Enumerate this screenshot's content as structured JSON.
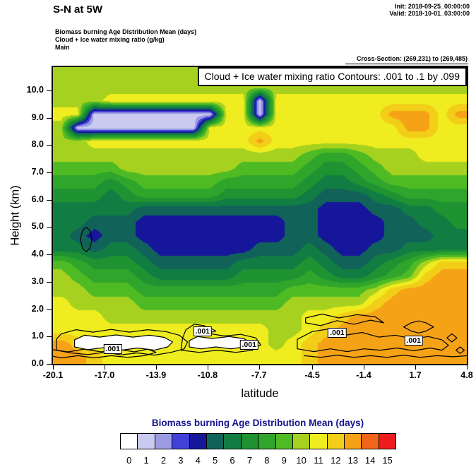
{
  "header": {
    "title": "S-N at 5W",
    "init_label": "Init: 2018-09-25_00:00:00",
    "valid_label": "Valid: 2018-10-01_03:00:00",
    "field_lines": [
      "Biomass burning Age Distribution Mean  (days)",
      "Cloud + Ice water mixing ratio  (g/kg)",
      "Main"
    ],
    "cross_section": "Cross-Section: (269,231) to (269,485)"
  },
  "chart_data": {
    "type": "heatmap",
    "plot_title": "Cloud + Ice water mixing ratio Contours: .001 to .1 by .099",
    "field_name": "Biomass burning Age Distribution Mean",
    "field_units": "days",
    "overlay_field": "Cloud + Ice water mixing ratio",
    "overlay_units": "g/kg",
    "xlabel": "latitude",
    "ylabel": "Height (km)",
    "xlim": [
      -20.1,
      4.8
    ],
    "ylim": [
      0,
      10.85
    ],
    "x_ticks": [
      -20.1,
      -17.0,
      -13.9,
      -10.8,
      -7.7,
      -4.5,
      -1.4,
      1.7,
      4.8
    ],
    "x_tick_labels": [
      "-20.1",
      "-17.0",
      "-13.9",
      "-10.8",
      "-7.7",
      "-4.5",
      "-1.4",
      "1.7",
      "4.8"
    ],
    "y_ticks": [
      0,
      1,
      2,
      3,
      4,
      5,
      6,
      7,
      8,
      9,
      10
    ],
    "y_tick_labels": [
      "0.0",
      "1.0",
      "2.0",
      "3.0",
      "4.0",
      "5.0",
      "6.0",
      "7.0",
      "8.0",
      "9.0",
      "10.0"
    ],
    "levels": [
      0,
      1,
      2,
      3,
      4,
      5,
      6,
      7,
      8,
      9,
      10,
      11,
      12,
      13,
      14,
      15
    ],
    "palette": [
      "#FFFFFF",
      "#CACAF0",
      "#9B9BE1",
      "#4141D7",
      "#16169B",
      "#11635A",
      "#127D43",
      "#1F9332",
      "#2FA52B",
      "#4FBB24",
      "#A6D21F",
      "#EFEC1F",
      "#F2CE18",
      "#F5A216",
      "#F2641A",
      "#EE1C1C"
    ],
    "values_grid": [
      [
        10,
        10,
        10,
        10,
        10,
        10,
        10,
        10,
        10,
        10,
        10,
        10,
        10,
        10,
        10,
        10,
        10,
        10,
        10,
        10,
        10,
        10,
        10,
        10,
        10
      ],
      [
        10,
        10,
        10,
        10,
        10,
        10,
        10,
        10,
        10,
        10,
        10,
        10,
        10,
        10,
        10,
        10,
        10,
        10,
        10,
        10,
        10,
        10,
        10,
        10,
        10
      ],
      [
        10,
        10,
        10,
        11,
        11,
        11,
        11,
        11,
        11,
        11,
        11,
        11,
        1,
        11,
        11,
        11,
        11,
        11,
        11,
        11,
        11,
        11,
        11,
        11,
        11
      ],
      [
        11,
        11,
        1,
        1,
        1,
        1,
        1,
        1,
        1,
        1,
        11,
        11,
        1,
        11,
        11,
        11,
        11,
        11,
        11,
        11,
        13,
        13,
        13,
        11,
        13
      ],
      [
        10,
        1,
        1,
        1,
        1,
        1,
        1,
        1,
        1,
        11,
        11,
        11,
        11,
        11,
        11,
        11,
        11,
        11,
        11,
        11,
        11,
        13,
        13,
        11,
        11
      ],
      [
        10,
        10,
        11,
        11,
        11,
        11,
        11,
        11,
        11,
        11,
        11,
        11,
        13,
        11,
        11,
        11,
        11,
        11,
        11,
        11,
        11,
        11,
        11,
        11,
        11
      ],
      [
        10,
        10,
        10,
        10,
        10,
        10,
        10,
        10,
        10,
        10,
        10,
        10,
        10,
        10,
        10,
        9,
        8,
        8,
        9,
        10,
        10,
        10,
        11,
        11,
        11
      ],
      [
        9,
        9,
        9,
        9,
        10,
        10,
        10,
        10,
        10,
        10,
        10,
        9,
        9,
        9,
        9,
        8,
        7,
        7,
        8,
        9,
        10,
        10,
        10,
        10,
        10
      ],
      [
        8,
        8,
        8,
        7,
        8,
        9,
        9,
        9,
        9,
        9,
        8,
        8,
        8,
        8,
        8,
        7,
        6,
        6,
        7,
        8,
        9,
        9,
        9,
        9,
        9
      ],
      [
        7,
        7,
        7,
        6,
        7,
        8,
        8,
        8,
        8,
        8,
        7,
        7,
        7,
        7,
        7,
        6,
        5,
        5,
        5,
        6,
        7,
        8,
        8,
        8,
        8
      ],
      [
        6,
        6,
        6,
        6,
        6,
        5,
        5,
        5,
        5,
        5,
        5,
        5,
        5,
        5,
        5,
        5,
        4,
        4,
        4,
        5,
        5,
        6,
        6,
        7,
        7
      ],
      [
        6,
        6,
        5,
        5,
        5,
        4,
        4,
        4,
        4,
        4,
        4,
        4,
        4,
        4,
        5,
        5,
        4,
        4,
        4,
        4,
        5,
        5,
        6,
        6,
        7
      ],
      [
        6,
        5,
        4,
        5,
        5,
        4,
        4,
        4,
        4,
        4,
        4,
        4,
        4,
        4,
        5,
        5,
        4,
        4,
        4,
        4,
        5,
        5,
        5,
        6,
        6
      ],
      [
        6,
        6,
        5,
        6,
        6,
        5,
        4,
        4,
        4,
        4,
        4,
        4,
        5,
        5,
        5,
        6,
        5,
        4,
        4,
        5,
        5,
        6,
        6,
        6,
        6
      ],
      [
        9,
        8,
        7,
        7,
        7,
        6,
        5,
        5,
        5,
        5,
        5,
        6,
        6,
        6,
        6,
        7,
        6,
        5,
        5,
        6,
        7,
        8,
        10,
        12,
        12
      ],
      [
        10,
        9,
        8,
        8,
        8,
        7,
        6,
        6,
        6,
        6,
        6,
        7,
        7,
        7,
        7,
        8,
        7,
        6,
        6,
        7,
        8,
        9,
        12,
        13,
        13
      ],
      [
        10,
        10,
        9,
        9,
        9,
        8,
        8,
        8,
        8,
        8,
        8,
        8,
        8,
        8,
        9,
        9,
        9,
        9,
        9,
        10,
        12,
        13,
        13,
        13,
        13
      ],
      [
        11,
        10,
        10,
        10,
        10,
        9,
        9,
        9,
        9,
        9,
        9,
        9,
        9,
        9,
        10,
        10,
        10,
        10,
        10,
        12,
        13,
        13,
        13,
        13,
        13
      ],
      [
        11,
        11,
        11,
        10,
        10,
        10,
        10,
        10,
        10,
        10,
        10,
        10,
        10,
        10,
        10,
        11,
        11,
        12,
        13,
        13,
        13,
        13,
        13,
        13,
        13
      ],
      [
        11,
        11,
        11,
        11,
        11,
        11,
        11,
        11,
        11,
        11,
        11,
        11,
        11,
        10,
        10,
        11,
        12,
        13,
        13,
        13,
        13,
        13,
        13,
        13,
        13
      ],
      [
        13,
        12,
        11,
        11,
        11,
        11,
        11,
        11,
        11,
        11,
        11,
        11,
        11,
        10,
        11,
        12,
        13,
        13,
        13,
        13,
        13,
        13,
        13,
        13,
        13
      ],
      [
        13,
        13,
        12,
        11,
        11,
        11,
        11,
        11,
        11,
        11,
        11,
        11,
        11,
        11,
        11,
        12,
        13,
        13,
        13,
        13,
        13,
        13,
        13,
        13,
        13
      ]
    ],
    "contours": {
      "level_label": ".001",
      "labels": [
        {
          "lat": -16.5,
          "km": 0.54
        },
        {
          "lat": -11.1,
          "km": 1.19
        },
        {
          "lat": -8.3,
          "km": 0.7
        },
        {
          "lat": -3.0,
          "km": 1.14
        },
        {
          "lat": 1.6,
          "km": 0.85
        }
      ],
      "white_regions": [
        [
          [
            -18.8,
            0.62
          ],
          [
            -18.0,
            0.52
          ],
          [
            -17.0,
            0.6
          ],
          [
            -16.0,
            0.5
          ],
          [
            -15.0,
            0.58
          ],
          [
            -14.0,
            0.5
          ],
          [
            -13.2,
            0.62
          ],
          [
            -12.9,
            0.8
          ],
          [
            -13.4,
            0.97
          ],
          [
            -14.3,
            1.05
          ],
          [
            -15.3,
            0.98
          ],
          [
            -16.3,
            1.06
          ],
          [
            -17.3,
            0.98
          ],
          [
            -18.2,
            1.05
          ],
          [
            -18.8,
            0.88
          ]
        ],
        [
          [
            -11.9,
            0.62
          ],
          [
            -11.2,
            0.55
          ],
          [
            -10.3,
            0.62
          ],
          [
            -9.4,
            0.55
          ],
          [
            -8.6,
            0.62
          ],
          [
            -8.2,
            0.78
          ],
          [
            -8.6,
            0.92
          ],
          [
            -9.5,
            1.0
          ],
          [
            -10.5,
            0.93
          ],
          [
            -11.4,
            1.0
          ],
          [
            -11.9,
            0.85
          ]
        ],
        [
          [
            -11.4,
            1.18
          ],
          [
            -10.8,
            1.12
          ],
          [
            -10.3,
            1.2
          ],
          [
            -10.7,
            1.33
          ],
          [
            -11.2,
            1.3
          ]
        ]
      ],
      "lines": [
        {
          "closed": true,
          "points": [
            [
              -19.9,
              0.5
            ],
            [
              -19.0,
              0.4
            ],
            [
              -18.0,
              0.34
            ],
            [
              -17.0,
              0.42
            ],
            [
              -16.0,
              0.33
            ],
            [
              -15.0,
              0.4
            ],
            [
              -14.0,
              0.32
            ],
            [
              -13.0,
              0.42
            ],
            [
              -12.2,
              0.55
            ],
            [
              -12.0,
              0.8
            ],
            [
              -12.5,
              1.05
            ],
            [
              -13.3,
              1.18
            ],
            [
              -14.4,
              1.25
            ],
            [
              -15.5,
              1.16
            ],
            [
              -16.6,
              1.26
            ],
            [
              -17.7,
              1.16
            ],
            [
              -18.7,
              1.25
            ],
            [
              -19.6,
              1.1
            ],
            [
              -19.9,
              0.9
            ]
          ]
        },
        {
          "closed": true,
          "points": [
            [
              -12.4,
              0.5
            ],
            [
              -11.3,
              0.42
            ],
            [
              -10.2,
              0.5
            ],
            [
              -9.1,
              0.42
            ],
            [
              -8.1,
              0.5
            ],
            [
              -7.6,
              0.7
            ],
            [
              -7.9,
              0.95
            ],
            [
              -8.8,
              1.08
            ],
            [
              -9.8,
              1.02
            ],
            [
              -10.6,
              1.1
            ],
            [
              -11.0,
              1.4
            ],
            [
              -11.6,
              1.45
            ],
            [
              -12.1,
              1.25
            ],
            [
              -12.3,
              0.95
            ]
          ]
        },
        {
          "closed": false,
          "points": [
            [
              -20.1,
              0.52
            ],
            [
              -19.2,
              0.44
            ],
            [
              -18.2,
              0.54
            ],
            [
              -17.2,
              0.44
            ],
            [
              -16.2,
              0.54
            ],
            [
              -15.2,
              0.44
            ],
            [
              -14.4,
              0.54
            ],
            [
              -13.9,
              0.42
            ],
            [
              -14.6,
              0.3
            ],
            [
              -15.6,
              0.24
            ],
            [
              -16.6,
              0.3
            ],
            [
              -17.6,
              0.22
            ],
            [
              -18.6,
              0.3
            ],
            [
              -19.6,
              0.22
            ],
            [
              -20.1,
              0.28
            ]
          ]
        },
        {
          "closed": true,
          "points": [
            [
              -5.4,
              0.55
            ],
            [
              -4.4,
              0.45
            ],
            [
              -3.4,
              0.55
            ],
            [
              -2.4,
              0.45
            ],
            [
              -1.4,
              0.55
            ],
            [
              -0.4,
              0.5
            ],
            [
              0.6,
              0.58
            ],
            [
              1.6,
              0.48
            ],
            [
              2.6,
              0.58
            ],
            [
              3.3,
              0.5
            ],
            [
              3.7,
              0.68
            ],
            [
              3.3,
              0.88
            ],
            [
              2.5,
              1.0
            ],
            [
              1.5,
              0.92
            ],
            [
              0.5,
              1.05
            ],
            [
              -0.5,
              0.98
            ],
            [
              -1.5,
              1.15
            ],
            [
              -2.5,
              1.05
            ],
            [
              -3.5,
              1.28
            ],
            [
              -4.5,
              1.18
            ],
            [
              -5.4,
              0.9
            ]
          ]
        },
        {
          "closed": true,
          "points": [
            [
              -4.9,
              1.5
            ],
            [
              -4.0,
              1.4
            ],
            [
              -3.0,
              1.58
            ],
            [
              -2.0,
              1.45
            ],
            [
              -1.0,
              1.6
            ],
            [
              -0.2,
              1.5
            ],
            [
              -0.7,
              1.72
            ],
            [
              -1.8,
              1.8
            ],
            [
              -2.9,
              1.68
            ],
            [
              -3.9,
              1.82
            ],
            [
              -4.9,
              1.68
            ]
          ]
        },
        {
          "closed": true,
          "points": [
            [
              1.0,
              1.35
            ],
            [
              1.45,
              1.5
            ],
            [
              1.9,
              1.57
            ],
            [
              2.35,
              1.5
            ],
            [
              2.8,
              1.35
            ],
            [
              2.35,
              1.2
            ],
            [
              1.9,
              1.13
            ],
            [
              1.45,
              1.2
            ]
          ]
        },
        {
          "closed": true,
          "points": [
            [
              3.6,
              0.95
            ],
            [
              3.9,
              1.1
            ],
            [
              4.2,
              0.95
            ],
            [
              3.9,
              0.8
            ]
          ]
        },
        {
          "closed": true,
          "points": [
            [
              4.15,
              0.5
            ],
            [
              4.4,
              0.62
            ],
            [
              4.65,
              0.5
            ],
            [
              4.4,
              0.38
            ]
          ]
        },
        {
          "closed": true,
          "points": [
            [
              -18.45,
              4.55
            ],
            [
              -18.32,
              4.88
            ],
            [
              -18.1,
              5.0
            ],
            [
              -17.88,
              4.88
            ],
            [
              -17.75,
              4.55
            ],
            [
              -17.88,
              4.22
            ],
            [
              -18.1,
              4.1
            ],
            [
              -18.32,
              4.22
            ]
          ]
        },
        {
          "closed": false,
          "points": [
            [
              -5.0,
              0.3
            ],
            [
              -4.0,
              0.24
            ],
            [
              -3.0,
              0.32
            ],
            [
              -2.0,
              0.24
            ],
            [
              -1.0,
              0.3
            ],
            [
              0.0,
              0.24
            ],
            [
              1.0,
              0.32
            ],
            [
              2.0,
              0.24
            ],
            [
              3.0,
              0.3
            ],
            [
              4.0,
              0.26
            ],
            [
              4.8,
              0.3
            ]
          ]
        }
      ]
    }
  },
  "legend": {
    "title": "Biomass burning Age Distribution Mean  (days)",
    "title_color": "#14148E",
    "tick_labels": [
      "0",
      "1",
      "2",
      "3",
      "4",
      "5",
      "6",
      "7",
      "8",
      "9",
      "10",
      "11",
      "12",
      "13",
      "14",
      "15"
    ]
  }
}
